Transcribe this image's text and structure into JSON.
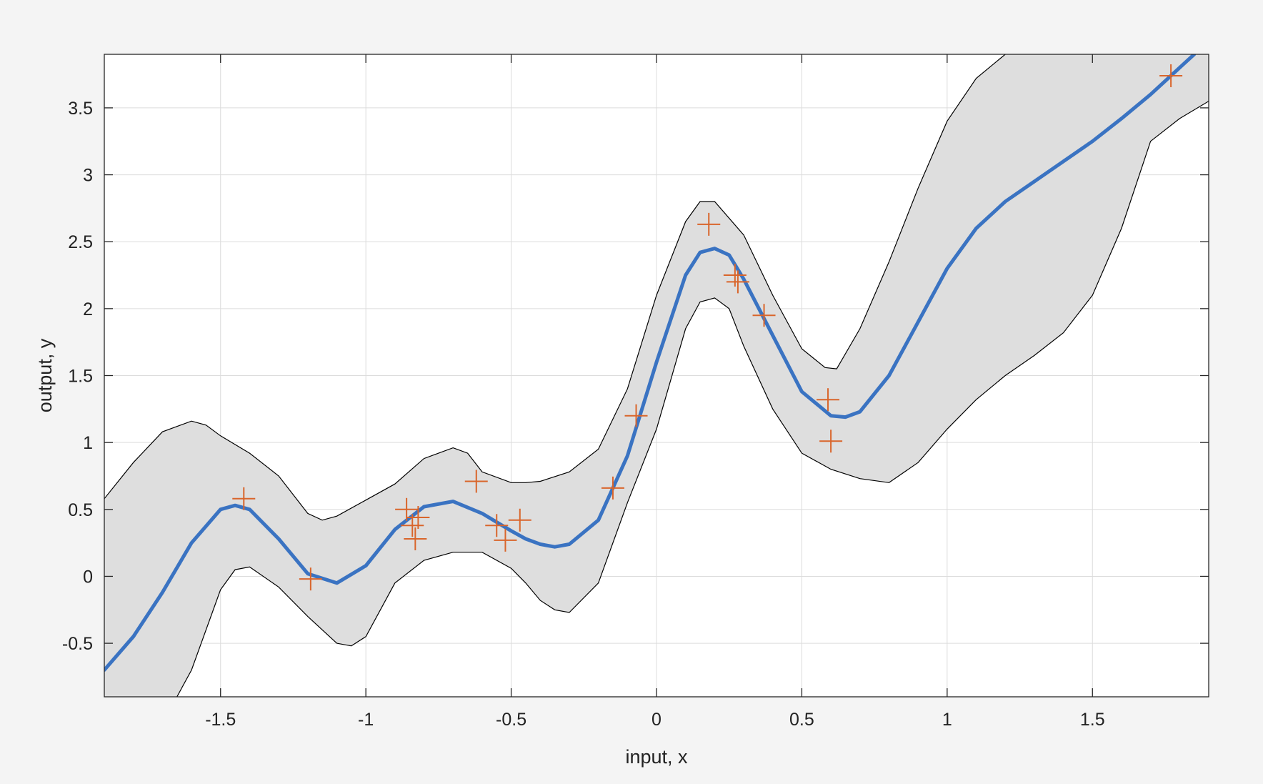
{
  "chart_data": {
    "type": "line",
    "title": "",
    "xlabel": "input, x",
    "ylabel": "output, y",
    "xlim": [
      -1.9,
      1.9
    ],
    "ylim": [
      -0.9,
      3.9
    ],
    "grid": true,
    "legend": "none",
    "x_ticks": [
      -1.5,
      -1,
      -0.5,
      0,
      0.5,
      1,
      1.5
    ],
    "x_tick_labels": [
      "-1.5",
      "-1",
      "-0.5",
      "0",
      "0.5",
      "1",
      "1.5"
    ],
    "y_ticks": [
      -0.5,
      0,
      0.5,
      1,
      1.5,
      2,
      2.5,
      3,
      3.5
    ],
    "y_tick_labels": [
      "-0.5",
      "0",
      "0.5",
      "1",
      "1.5",
      "2",
      "2.5",
      "3",
      "3.5"
    ],
    "colors": {
      "mean": "#3a73c2",
      "band_fill": "#dedede",
      "band_edge": "#000000",
      "points": "#d9652b",
      "grid": "#dcdcdc",
      "axes_bg": "#ffffff",
      "figure_bg": "#f4f4f4"
    },
    "series": [
      {
        "kind": "mean-line",
        "x": [
          -1.9,
          -1.8,
          -1.7,
          -1.6,
          -1.5,
          -1.45,
          -1.4,
          -1.3,
          -1.2,
          -1.1,
          -1.0,
          -0.9,
          -0.8,
          -0.7,
          -0.6,
          -0.5,
          -0.45,
          -0.4,
          -0.35,
          -0.3,
          -0.2,
          -0.1,
          0.0,
          0.1,
          0.15,
          0.2,
          0.25,
          0.3,
          0.4,
          0.5,
          0.6,
          0.65,
          0.7,
          0.8,
          0.9,
          1.0,
          1.1,
          1.2,
          1.3,
          1.4,
          1.5,
          1.6,
          1.7,
          1.8,
          1.85
        ],
        "y": [
          -0.7,
          -0.45,
          -0.12,
          0.25,
          0.5,
          0.53,
          0.5,
          0.28,
          0.02,
          -0.05,
          0.08,
          0.35,
          0.52,
          0.56,
          0.47,
          0.34,
          0.28,
          0.24,
          0.22,
          0.24,
          0.42,
          0.9,
          1.6,
          2.25,
          2.42,
          2.45,
          2.4,
          2.22,
          1.8,
          1.38,
          1.2,
          1.19,
          1.23,
          1.5,
          1.9,
          2.3,
          2.6,
          2.8,
          2.95,
          3.1,
          3.25,
          3.42,
          3.6,
          3.8,
          3.9
        ]
      },
      {
        "kind": "upper-bound",
        "x": [
          -1.9,
          -1.8,
          -1.7,
          -1.6,
          -1.55,
          -1.5,
          -1.4,
          -1.3,
          -1.2,
          -1.15,
          -1.1,
          -1.0,
          -0.9,
          -0.8,
          -0.7,
          -0.65,
          -0.6,
          -0.5,
          -0.45,
          -0.4,
          -0.3,
          -0.2,
          -0.1,
          0.0,
          0.1,
          0.15,
          0.2,
          0.3,
          0.4,
          0.5,
          0.58,
          0.62,
          0.7,
          0.8,
          0.9,
          1.0,
          1.1,
          1.2,
          1.25
        ],
        "y": [
          0.58,
          0.85,
          1.08,
          1.16,
          1.13,
          1.05,
          0.92,
          0.75,
          0.47,
          0.42,
          0.45,
          0.57,
          0.69,
          0.88,
          0.96,
          0.92,
          0.78,
          0.7,
          0.7,
          0.71,
          0.78,
          0.95,
          1.4,
          2.1,
          2.65,
          2.8,
          2.8,
          2.55,
          2.1,
          1.7,
          1.56,
          1.55,
          1.85,
          2.35,
          2.9,
          3.4,
          3.72,
          3.9,
          3.95
        ]
      },
      {
        "kind": "lower-bound",
        "x": [
          -1.65,
          -1.6,
          -1.5,
          -1.45,
          -1.4,
          -1.3,
          -1.2,
          -1.1,
          -1.05,
          -1.0,
          -0.9,
          -0.8,
          -0.7,
          -0.6,
          -0.5,
          -0.45,
          -0.4,
          -0.35,
          -0.3,
          -0.2,
          -0.1,
          0.0,
          0.1,
          0.15,
          0.2,
          0.25,
          0.3,
          0.4,
          0.5,
          0.6,
          0.7,
          0.8,
          0.9,
          1.0,
          1.1,
          1.2,
          1.3,
          1.4,
          1.5,
          1.6,
          1.7,
          1.8,
          1.9
        ],
        "y": [
          -0.9,
          -0.7,
          -0.1,
          0.05,
          0.07,
          -0.08,
          -0.3,
          -0.5,
          -0.52,
          -0.45,
          -0.05,
          0.12,
          0.18,
          0.18,
          0.06,
          -0.05,
          -0.18,
          -0.25,
          -0.27,
          -0.05,
          0.55,
          1.1,
          1.85,
          2.05,
          2.08,
          2.0,
          1.72,
          1.25,
          0.92,
          0.8,
          0.73,
          0.7,
          0.85,
          1.1,
          1.32,
          1.5,
          1.65,
          1.82,
          2.1,
          2.6,
          3.25,
          3.42,
          3.55
        ]
      }
    ],
    "points": {
      "x": [
        -1.42,
        -1.19,
        -0.86,
        -0.84,
        -0.83,
        -0.82,
        -0.62,
        -0.55,
        -0.52,
        -0.47,
        -0.15,
        -0.07,
        0.18,
        0.27,
        0.28,
        0.37,
        0.59,
        0.6,
        1.77
      ],
      "y": [
        0.58,
        -0.02,
        0.5,
        0.38,
        0.28,
        0.44,
        0.71,
        0.38,
        0.27,
        0.42,
        0.66,
        1.2,
        2.63,
        2.25,
        2.2,
        1.95,
        1.32,
        1.01,
        3.74
      ]
    }
  }
}
